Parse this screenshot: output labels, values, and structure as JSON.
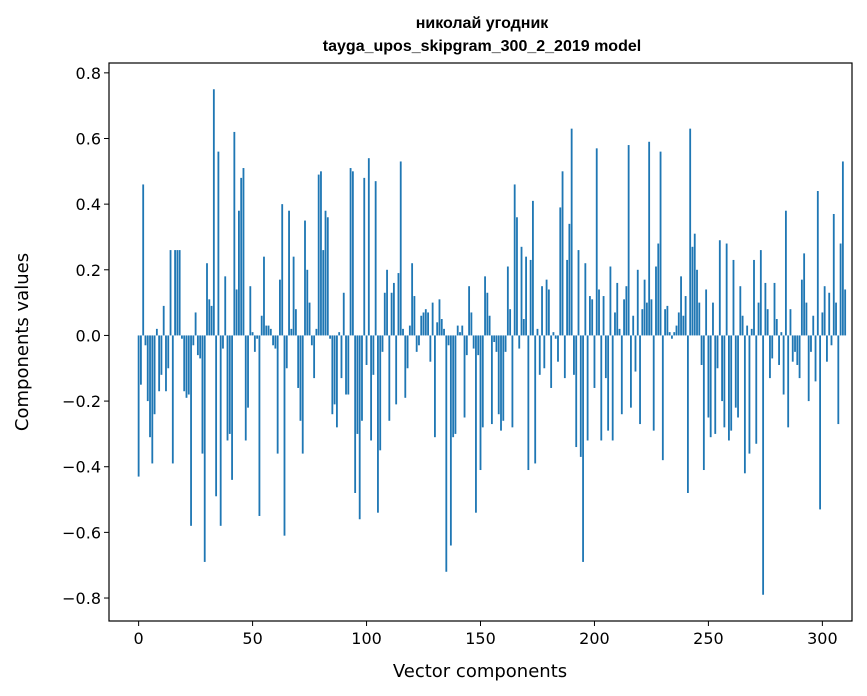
{
  "chart_data": {
    "type": "bar",
    "title": "николай угодник",
    "subtitle": "tayga_upos_skipgram_300_2_2019 model",
    "xlabel": "Vector components",
    "ylabel": "Components values",
    "xlim": [
      -13,
      313
    ],
    "ylim": [
      -0.87,
      0.83
    ],
    "xticks": [
      0,
      50,
      100,
      150,
      200,
      250,
      300
    ],
    "yticks": [
      -0.8,
      -0.6,
      -0.4,
      -0.2,
      0.0,
      0.2,
      0.4,
      0.6,
      0.8
    ],
    "ytick_labels": [
      "−0.8",
      "−0.6",
      "−0.4",
      "−0.2",
      "0.0",
      "0.2",
      "0.4",
      "0.6",
      "0.8"
    ],
    "bar_color": "#1f77b4",
    "values": [
      -0.43,
      -0.15,
      0.46,
      -0.03,
      -0.2,
      -0.31,
      -0.39,
      -0.24,
      0.02,
      -0.17,
      -0.12,
      0.09,
      -0.17,
      -0.1,
      0.26,
      -0.39,
      0.26,
      0.26,
      0.26,
      -0.01,
      -0.17,
      -0.19,
      -0.18,
      -0.58,
      -0.03,
      0.07,
      -0.06,
      -0.07,
      -0.36,
      -0.69,
      0.22,
      0.11,
      0.09,
      0.75,
      -0.49,
      0.56,
      -0.58,
      -0.04,
      0.18,
      -0.32,
      -0.3,
      -0.44,
      0.62,
      0.14,
      0.38,
      0.48,
      0.51,
      -0.32,
      -0.22,
      0.15,
      0.01,
      -0.05,
      -0.01,
      -0.55,
      0.06,
      0.24,
      0.03,
      0.03,
      0.02,
      -0.03,
      -0.04,
      -0.36,
      0.17,
      0.4,
      -0.61,
      -0.1,
      0.38,
      0.02,
      0.24,
      0.08,
      -0.16,
      -0.26,
      -0.36,
      0.35,
      0.2,
      0.1,
      -0.03,
      -0.13,
      0.02,
      0.49,
      0.5,
      0.26,
      0.38,
      0.36,
      -0.01,
      -0.24,
      -0.21,
      -0.28,
      0.01,
      -0.13,
      0.13,
      -0.18,
      -0.18,
      0.51,
      0.5,
      -0.48,
      -0.3,
      -0.56,
      -0.26,
      0.48,
      -0.09,
      0.54,
      -0.32,
      -0.12,
      0.47,
      -0.54,
      -0.35,
      -0.05,
      0.13,
      0.2,
      -0.26,
      0.13,
      0.16,
      -0.21,
      0.19,
      0.53,
      0.02,
      -0.19,
      -0.1,
      0.03,
      0.22,
      0.12,
      -0.05,
      -0.03,
      0.06,
      0.07,
      0.08,
      0.07,
      -0.08,
      0.1,
      -0.31,
      0.04,
      0.11,
      0.05,
      0.02,
      -0.72,
      -0.03,
      -0.64,
      -0.31,
      -0.3,
      0.03,
      0.01,
      0.03,
      -0.25,
      -0.06,
      0.15,
      0.07,
      -0.04,
      -0.54,
      -0.06,
      -0.41,
      -0.28,
      0.18,
      0.13,
      0.06,
      -0.27,
      -0.02,
      -0.05,
      -0.24,
      -0.29,
      -0.26,
      -0.05,
      0.21,
      0.08,
      -0.28,
      0.46,
      0.36,
      -0.04,
      0.27,
      0.05,
      0.24,
      -0.41,
      0.23,
      0.41,
      -0.39,
      0.02,
      -0.12,
      0.15,
      -0.1,
      0.17,
      0.14,
      -0.16,
      0.01,
      -0.01,
      -0.08,
      0.39,
      0.5,
      -0.13,
      0.23,
      0.34,
      0.63,
      -0.12,
      -0.34,
      0.26,
      -0.37,
      -0.69,
      0.22,
      -0.32,
      0.12,
      0.11,
      -0.16,
      0.57,
      0.14,
      -0.32,
      0.12,
      -0.13,
      -0.29,
      0.21,
      -0.32,
      0.07,
      0.16,
      0.02,
      -0.24,
      0.11,
      0.15,
      0.58,
      -0.22,
      0.06,
      -0.11,
      0.2,
      -0.27,
      0.08,
      0.17,
      0.1,
      0.59,
      0.11,
      -0.29,
      0.21,
      0.28,
      0.56,
      -0.38,
      0.08,
      0.09,
      0.01,
      -0.01,
      0.01,
      0.03,
      0.07,
      0.18,
      0.06,
      0.12,
      -0.48,
      0.63,
      0.27,
      0.31,
      0.2,
      0.1,
      -0.09,
      -0.41,
      0.14,
      -0.25,
      -0.31,
      0.1,
      -0.3,
      -0.1,
      0.29,
      -0.2,
      -0.28,
      0.28,
      -0.32,
      -0.29,
      0.23,
      -0.22,
      -0.25,
      0.15,
      0.06,
      -0.42,
      0.03,
      -0.36,
      0.02,
      0.23,
      -0.33,
      0.1,
      0.26,
      -0.79,
      0.16,
      0.08,
      -0.13,
      -0.07,
      0.16,
      0.05,
      -0.09,
      0.01,
      -0.18,
      0.38,
      -0.28,
      0.08,
      -0.08,
      -0.05,
      -0.09,
      -0.13,
      0.17,
      0.25,
      0.1,
      -0.2,
      -0.05,
      0.06,
      -0.14,
      0.44,
      -0.53,
      0.07,
      0.15,
      -0.08,
      0.13,
      -0.03,
      0.37,
      0.1,
      -0.27,
      0.28,
      0.53,
      0.14
    ]
  }
}
